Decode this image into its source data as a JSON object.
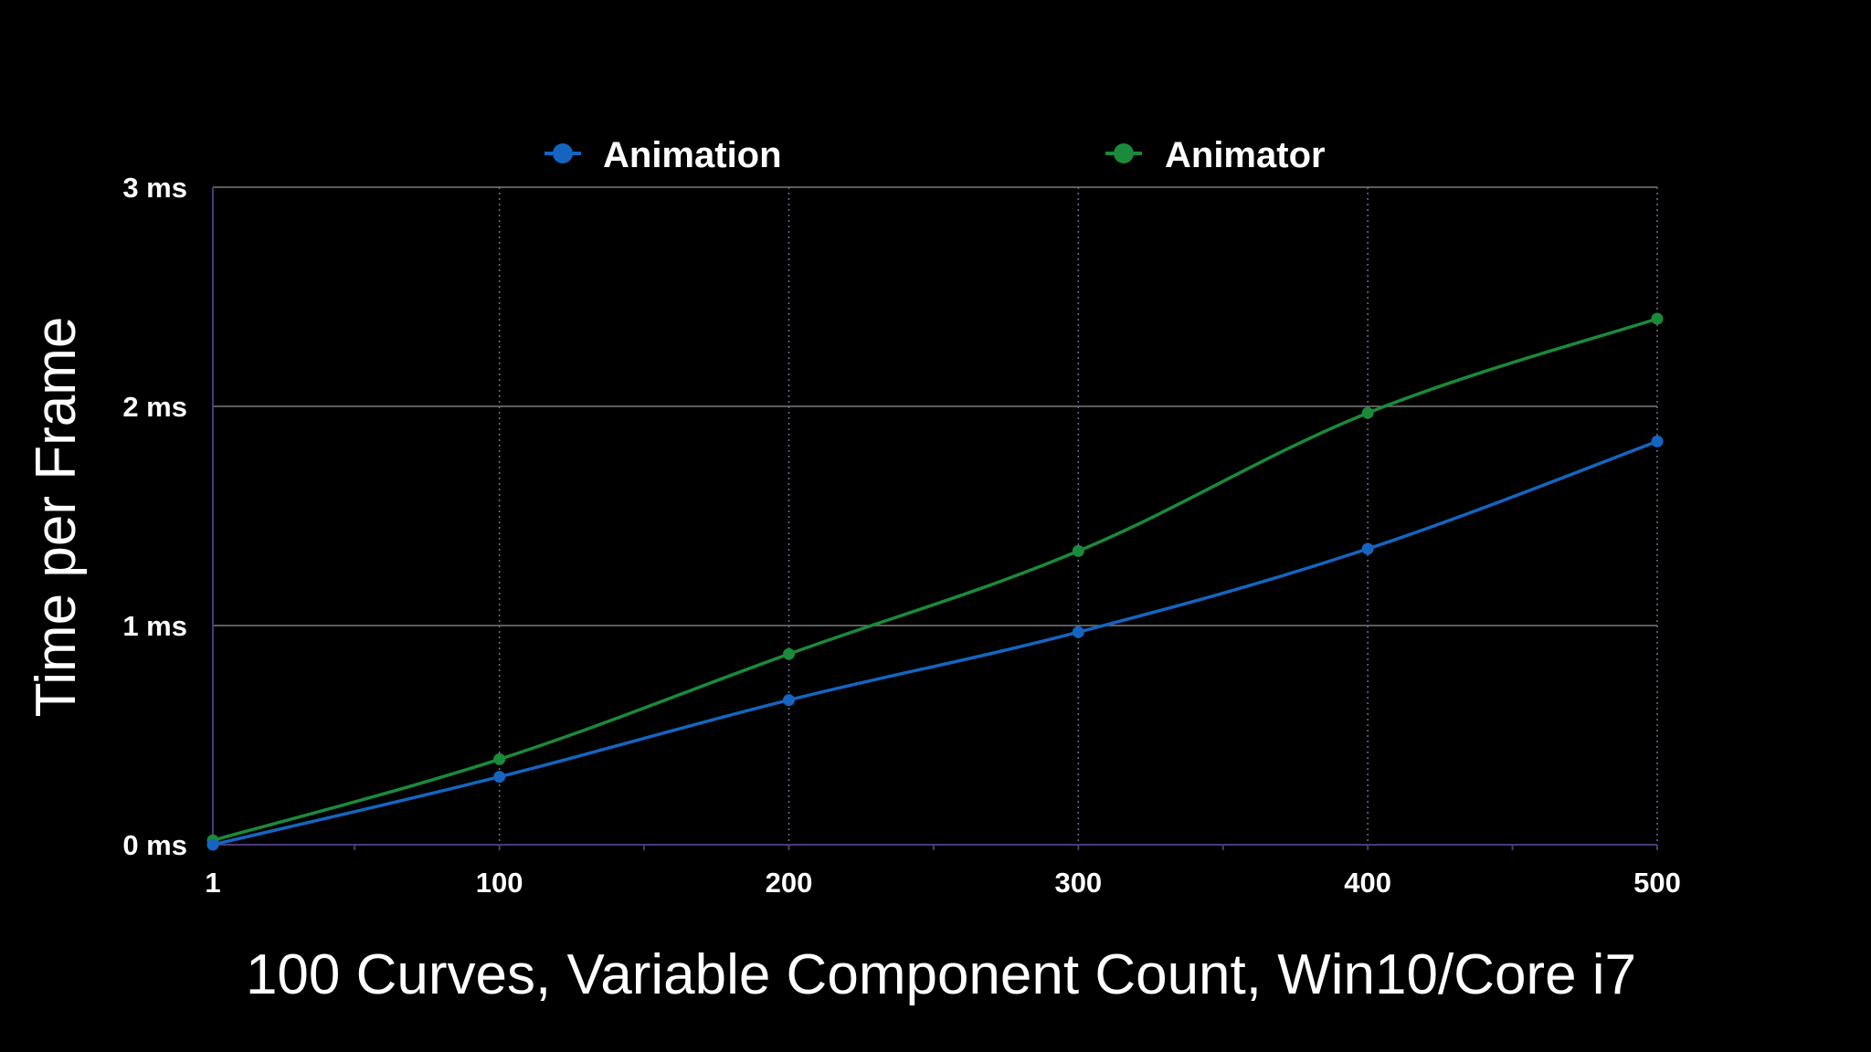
{
  "chart_data": {
    "type": "line",
    "title": "",
    "xlabel": "100 Curves, Variable Component Count, Win10/Core i7",
    "ylabel": "Time per Frame",
    "x": [
      1,
      100,
      200,
      300,
      400,
      500
    ],
    "x_tick_labels": [
      "1",
      "100",
      "200",
      "300",
      "400",
      "500"
    ],
    "y_tick_labels": [
      "0 ms",
      "1 ms",
      "2 ms",
      "3 ms"
    ],
    "xlim": [
      1,
      500
    ],
    "ylim": [
      0,
      3
    ],
    "y_unit": "ms",
    "grid": true,
    "legend_position": "top-center",
    "series": [
      {
        "name": "Animation",
        "color": "#1565c0",
        "values": [
          0.0,
          0.31,
          0.66,
          0.97,
          1.35,
          1.84
        ]
      },
      {
        "name": "Animator",
        "color": "#1b8a3a",
        "values": [
          0.02,
          0.39,
          0.87,
          1.34,
          1.97,
          2.4
        ]
      }
    ]
  }
}
